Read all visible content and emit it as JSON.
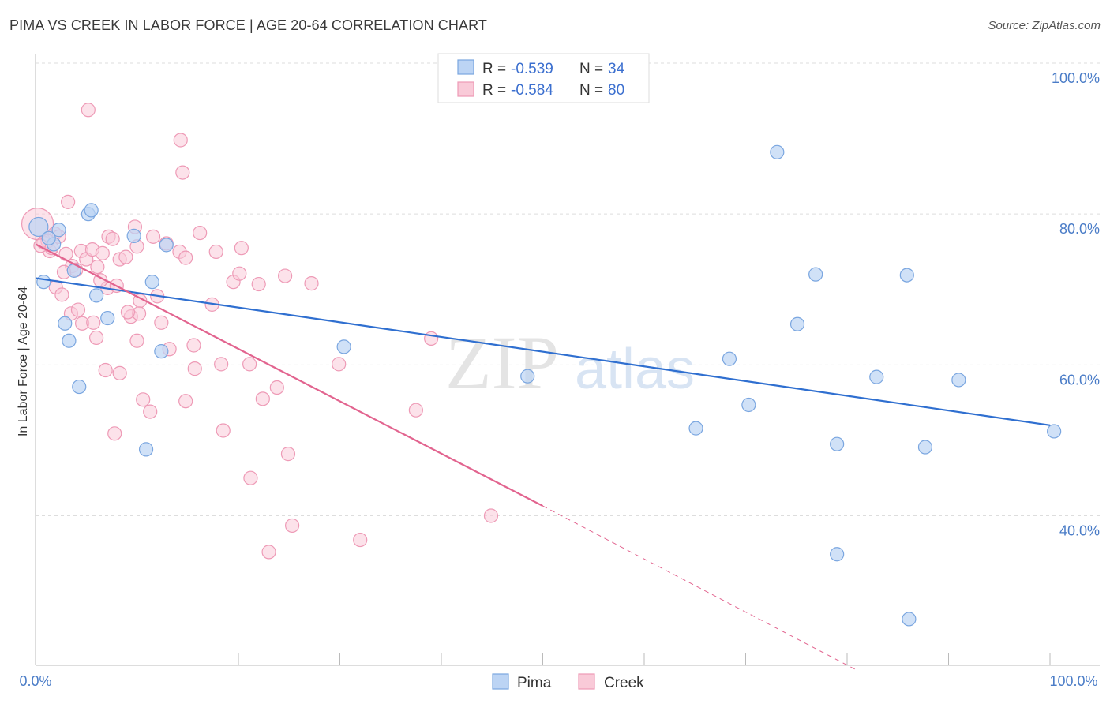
{
  "header": {
    "title": "PIMA VS CREEK IN LABOR FORCE | AGE 20-64 CORRELATION CHART",
    "source": "Source: ZipAtlas.com"
  },
  "watermark": {
    "zip": "ZIP",
    "atlas": "atlas"
  },
  "legend": {
    "pima": {
      "r_label": "R =",
      "r_value": "-0.539",
      "n_label": "N =",
      "n_value": "34"
    },
    "creek": {
      "r_label": "R =",
      "r_value": "-0.584",
      "n_label": "N =",
      "n_value": "80"
    }
  },
  "bottom_legend": {
    "pima": "Pima",
    "creek": "Creek"
  },
  "colors": {
    "pima_fill": "#bcd4f4",
    "pima_stroke": "#7aa6e0",
    "pima_line": "#2f6fd0",
    "creek_fill": "#f9cad8",
    "creek_stroke": "#ee9ab6",
    "creek_line": "#e2648f",
    "tick_label": "#4a7cc7",
    "grid": "#dddddd"
  },
  "chart_data": {
    "type": "scatter",
    "title": "PIMA VS CREEK IN LABOR FORCE | AGE 20-64 CORRELATION CHART",
    "xlabel": "",
    "ylabel": "In Labor Force | Age 20-64",
    "xlim": [
      0,
      100
    ],
    "ylim": [
      19,
      100
    ],
    "x_tick_labels": [
      "0.0%",
      "100.0%"
    ],
    "y_ticks": [
      40,
      60,
      80,
      100
    ],
    "y_tick_labels": [
      "40.0%",
      "60.0%",
      "80.0%",
      "100.0%"
    ],
    "grid": "horizontal dashed",
    "legend_position": "top-center",
    "series": [
      {
        "name": "Pima",
        "points": [
          [
            0.3,
            78.3
          ],
          [
            2.3,
            77.9
          ],
          [
            1.8,
            76.0
          ],
          [
            5.2,
            80.0
          ],
          [
            5.5,
            80.5
          ],
          [
            9.7,
            77.1
          ],
          [
            12.9,
            75.9
          ],
          [
            0.8,
            71.0
          ],
          [
            3.8,
            72.5
          ],
          [
            11.5,
            71.0
          ],
          [
            6.0,
            69.2
          ],
          [
            2.9,
            65.5
          ],
          [
            7.1,
            66.2
          ],
          [
            3.3,
            63.2
          ],
          [
            12.4,
            61.8
          ],
          [
            4.3,
            57.1
          ],
          [
            10.9,
            48.8
          ],
          [
            30.4,
            62.4
          ],
          [
            48.5,
            58.5
          ],
          [
            73.1,
            88.2
          ],
          [
            76.9,
            72.0
          ],
          [
            85.9,
            71.9
          ],
          [
            75.1,
            65.4
          ],
          [
            68.4,
            60.8
          ],
          [
            70.3,
            54.7
          ],
          [
            82.9,
            58.4
          ],
          [
            91.0,
            58.0
          ],
          [
            65.1,
            51.6
          ],
          [
            79.0,
            49.5
          ],
          [
            87.7,
            49.1
          ],
          [
            100.4,
            51.2
          ],
          [
            79.0,
            34.9
          ],
          [
            86.1,
            26.3
          ],
          [
            1.3,
            76.8
          ]
        ]
      },
      {
        "name": "Creek",
        "points": [
          [
            0.2,
            78.7
          ],
          [
            0.8,
            76.2
          ],
          [
            1.4,
            75.1
          ],
          [
            1.9,
            77.4
          ],
          [
            2.3,
            77.0
          ],
          [
            3.2,
            81.6
          ],
          [
            3.6,
            73.1
          ],
          [
            4.0,
            72.6
          ],
          [
            4.5,
            75.1
          ],
          [
            5.0,
            74.0
          ],
          [
            5.6,
            75.3
          ],
          [
            6.1,
            73.0
          ],
          [
            6.6,
            74.8
          ],
          [
            7.2,
            77.0
          ],
          [
            7.6,
            76.7
          ],
          [
            8.3,
            74.0
          ],
          [
            8.9,
            74.3
          ],
          [
            9.8,
            78.3
          ],
          [
            10.0,
            75.7
          ],
          [
            11.6,
            77.0
          ],
          [
            12.9,
            76.1
          ],
          [
            14.2,
            75.0
          ],
          [
            14.8,
            74.2
          ],
          [
            16.2,
            77.5
          ],
          [
            17.8,
            75.0
          ],
          [
            19.5,
            71.0
          ],
          [
            20.1,
            72.1
          ],
          [
            22.0,
            70.7
          ],
          [
            2.0,
            70.3
          ],
          [
            2.6,
            69.3
          ],
          [
            7.1,
            70.2
          ],
          [
            10.3,
            68.5
          ],
          [
            12.0,
            69.1
          ],
          [
            17.4,
            68.0
          ],
          [
            3.5,
            66.8
          ],
          [
            4.2,
            67.3
          ],
          [
            4.6,
            65.5
          ],
          [
            5.7,
            65.6
          ],
          [
            9.4,
            66.4
          ],
          [
            10.2,
            66.8
          ],
          [
            12.4,
            65.6
          ],
          [
            6.0,
            63.6
          ],
          [
            10.0,
            63.2
          ],
          [
            15.6,
            62.6
          ],
          [
            18.3,
            60.1
          ],
          [
            21.1,
            60.1
          ],
          [
            29.9,
            60.1
          ],
          [
            6.9,
            59.3
          ],
          [
            8.3,
            58.9
          ],
          [
            15.7,
            59.5
          ],
          [
            10.6,
            55.4
          ],
          [
            14.8,
            55.2
          ],
          [
            22.4,
            55.5
          ],
          [
            23.8,
            57.0
          ],
          [
            11.3,
            53.8
          ],
          [
            7.8,
            50.9
          ],
          [
            18.5,
            51.3
          ],
          [
            37.5,
            54.0
          ],
          [
            21.2,
            45.0
          ],
          [
            24.9,
            48.2
          ],
          [
            44.9,
            40.0
          ],
          [
            25.3,
            38.7
          ],
          [
            32.0,
            36.8
          ],
          [
            23.0,
            35.2
          ],
          [
            5.2,
            93.8
          ],
          [
            14.3,
            89.8
          ],
          [
            14.5,
            85.5
          ],
          [
            20.3,
            75.5
          ],
          [
            24.6,
            71.8
          ],
          [
            27.2,
            70.8
          ],
          [
            39.0,
            63.5
          ],
          [
            1.2,
            76.4
          ],
          [
            0.5,
            75.8
          ],
          [
            1.6,
            75.5
          ],
          [
            3.0,
            74.7
          ],
          [
            6.4,
            71.2
          ],
          [
            8.0,
            70.5
          ],
          [
            9.1,
            67.0
          ],
          [
            13.2,
            62.1
          ],
          [
            2.8,
            72.3
          ]
        ]
      }
    ],
    "trendlines": [
      {
        "series": "Pima",
        "from": [
          0.0,
          71.5
        ],
        "to": [
          100.0,
          52.0
        ]
      },
      {
        "series": "Creek",
        "from": [
          0.0,
          76.0
        ],
        "to": [
          50.0,
          41.3
        ],
        "dashed_to": [
          81.0,
          19.5
        ]
      }
    ]
  }
}
